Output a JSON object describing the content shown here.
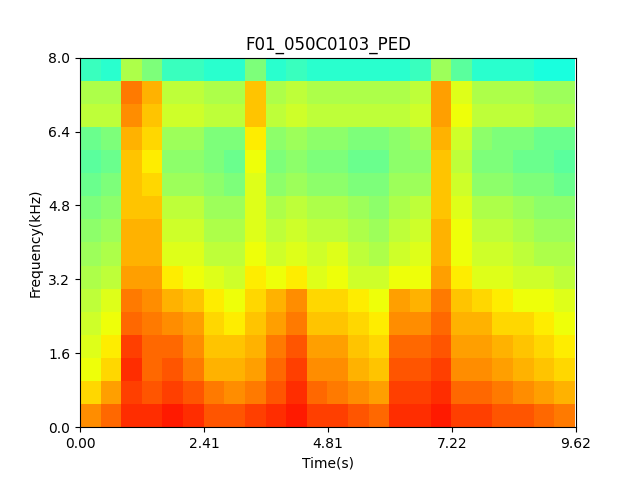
{
  "chart_data": {
    "type": "heatmap",
    "title": "F01_050C0103_PED",
    "x_label": "Time(s)",
    "y_label": "Frequency(kHz)",
    "color": "jet",
    "color_range": [
      0,
      100
    ],
    "x": [
      0.2,
      0.6,
      1.0,
      1.4,
      1.8,
      2.2,
      2.6,
      3.0,
      3.4,
      3.8,
      4.2,
      4.6,
      5.0,
      5.4,
      5.8,
      6.2,
      6.6,
      7.0,
      7.4,
      7.8,
      8.2,
      8.6,
      9.0,
      9.4
    ],
    "y": [
      0.25,
      0.75,
      1.25,
      1.75,
      2.25,
      2.75,
      3.25,
      3.75,
      4.25,
      4.75,
      5.25,
      5.75,
      6.25,
      6.75,
      7.25,
      7.75
    ],
    "cells": [
      [
        76,
        80,
        86,
        86,
        88,
        86,
        82,
        82,
        84,
        86,
        88,
        84,
        84,
        82,
        80,
        86,
        86,
        88,
        84,
        84,
        82,
        82,
        80,
        78
      ],
      [
        68,
        74,
        84,
        82,
        84,
        82,
        78,
        76,
        78,
        82,
        86,
        80,
        78,
        76,
        74,
        84,
        84,
        86,
        80,
        80,
        78,
        76,
        74,
        72
      ],
      [
        64,
        68,
        86,
        80,
        82,
        78,
        72,
        72,
        74,
        80,
        84,
        76,
        76,
        72,
        70,
        82,
        82,
        84,
        76,
        76,
        74,
        72,
        70,
        68
      ],
      [
        62,
        66,
        84,
        80,
        80,
        76,
        70,
        70,
        72,
        78,
        82,
        74,
        74,
        70,
        68,
        80,
        80,
        82,
        74,
        74,
        72,
        70,
        68,
        66
      ],
      [
        60,
        64,
        80,
        78,
        76,
        74,
        68,
        66,
        70,
        74,
        78,
        70,
        70,
        68,
        66,
        76,
        76,
        80,
        72,
        72,
        68,
        68,
        66,
        64
      ],
      [
        58,
        62,
        78,
        76,
        72,
        70,
        66,
        64,
        68,
        72,
        76,
        68,
        68,
        66,
        64,
        74,
        72,
        78,
        70,
        68,
        66,
        64,
        64,
        62
      ],
      [
        56,
        58,
        74,
        74,
        66,
        64,
        62,
        60,
        66,
        64,
        66,
        62,
        64,
        60,
        60,
        64,
        64,
        74,
        66,
        62,
        62,
        60,
        60,
        58
      ],
      [
        54,
        56,
        72,
        72,
        62,
        62,
        58,
        58,
        64,
        60,
        62,
        60,
        62,
        58,
        56,
        60,
        62,
        72,
        64,
        60,
        60,
        58,
        56,
        56
      ],
      [
        52,
        54,
        72,
        72,
        60,
        60,
        56,
        56,
        62,
        58,
        60,
        58,
        58,
        56,
        54,
        58,
        60,
        72,
        64,
        58,
        58,
        56,
        54,
        54
      ],
      [
        50,
        52,
        70,
        70,
        58,
        58,
        54,
        54,
        62,
        56,
        58,
        56,
        56,
        54,
        52,
        56,
        58,
        70,
        62,
        56,
        56,
        54,
        52,
        52
      ],
      [
        48,
        50,
        70,
        68,
        54,
        54,
        52,
        50,
        62,
        52,
        54,
        52,
        52,
        50,
        50,
        54,
        54,
        70,
        60,
        52,
        52,
        50,
        50,
        48
      ],
      [
        46,
        48,
        70,
        66,
        52,
        52,
        50,
        48,
        64,
        50,
        52,
        50,
        50,
        48,
        48,
        52,
        52,
        70,
        58,
        50,
        50,
        48,
        48,
        46
      ],
      [
        48,
        50,
        72,
        68,
        54,
        54,
        50,
        50,
        66,
        52,
        54,
        52,
        52,
        50,
        50,
        52,
        54,
        72,
        60,
        52,
        50,
        50,
        48,
        48
      ],
      [
        58,
        58,
        76,
        70,
        60,
        60,
        58,
        58,
        70,
        58,
        60,
        58,
        58,
        58,
        58,
        58,
        60,
        74,
        64,
        58,
        58,
        58,
        56,
        56
      ],
      [
        56,
        56,
        78,
        72,
        58,
        58,
        56,
        56,
        70,
        56,
        58,
        56,
        56,
        56,
        56,
        56,
        58,
        74,
        62,
        56,
        56,
        56,
        54,
        54
      ],
      [
        42,
        40,
        56,
        50,
        42,
        42,
        40,
        40,
        50,
        40,
        42,
        40,
        40,
        40,
        40,
        40,
        42,
        54,
        46,
        40,
        40,
        40,
        38,
        38
      ]
    ],
    "xlim": [
      0,
      9.62
    ],
    "xticks": [
      {
        "value": 0,
        "label": "0.00"
      },
      2.41,
      4.81,
      7.22,
      9.62
    ],
    "ylim": [
      0,
      8
    ],
    "yticks": [
      {
        "value": 0,
        "label": "0.0"
      },
      1.6,
      3.2,
      4.8,
      6.4,
      {
        "value": 8,
        "label": "8.0"
      }
    ]
  }
}
